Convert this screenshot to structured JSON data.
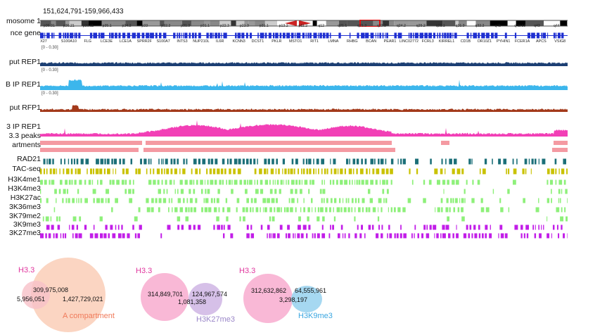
{
  "locus": "151,624,791-159,966,433",
  "colors": {
    "navy": "#1c3f73",
    "sky": "#3cb6ec",
    "rust": "#a3391a",
    "pink": "#f23fb6",
    "pink_light": "#f49aa2",
    "teal": "#1b6f78",
    "olive": "#c9c200",
    "lime": "#8ef07a",
    "purple": "#c21de8",
    "gene_blue": "#1f2fd1"
  },
  "tracks": [
    {
      "label": "mosome 1",
      "name": "chromosome-track"
    },
    {
      "label": "nce gene",
      "name": "reference-gene-track"
    },
    {
      "label": "put REP1",
      "name": "input-rep1-track",
      "scale": "[0 - 0.30]"
    },
    {
      "label": "B IP REP1",
      "name": "b-ip-rep1-track",
      "scale": "[0 - 0.30]"
    },
    {
      "label": "put RFP1",
      "name": "input-rfp1-track",
      "scale": "[0 - 0.30]"
    },
    {
      "label": "3 IP REP1",
      "name": "h33-ip-rep1-track"
    },
    {
      "label": "3.3 peaks",
      "name": "h33-peaks-track"
    },
    {
      "label": "artments",
      "name": "compartments-track"
    },
    {
      "label": "RAD21",
      "name": "rad21-track"
    },
    {
      "label": "TAC-seq",
      "name": "atac-seq-track"
    },
    {
      "label": "H3K4me1",
      "name": "h3k4me1-track"
    },
    {
      "label": "H3K4me3",
      "name": "h3k4me3-track"
    },
    {
      "label": "H3K27ac",
      "name": "h3k27ac-track"
    },
    {
      "label": "3K36me3",
      "name": "h3k36me3-track"
    },
    {
      "label": "3K79me2",
      "name": "h3k79me2-track"
    },
    {
      "label": "3K9me3",
      "name": "h3k9me3-track"
    },
    {
      "label": "3K27me3",
      "name": "h3k27me3-track"
    }
  ],
  "cyto_bands": [
    "p36.31",
    "p36.21",
    "p36.11",
    "p35.1",
    "p34.2",
    "p33",
    "p32.2",
    "p31.3",
    "p31.1",
    "p22.3",
    "p21.3",
    "p21.1",
    "p13.2",
    "p11.2",
    "q12",
    "q21.1",
    "q21.3",
    "q23.2",
    "q24.2",
    "q25.2",
    "q31.1",
    "q31.3",
    "q32.2",
    "q41",
    "q42.13",
    "q43",
    "q44"
  ],
  "genes": [
    "X27",
    "S100A10",
    "FLG",
    "LCE3E",
    "LCE1A",
    "SPRR2F",
    "S100A7",
    "INTS3",
    "NUP210L",
    "IL6R",
    "KCNN3",
    "DCST1",
    "PKLR",
    "MSTO1",
    "RIT1",
    "LMNA",
    "RHBG",
    "BCAN",
    "PEAR1",
    "LINC02772",
    "FCRL3",
    "KIRREL1",
    "CD1B",
    "OR10Z1",
    "PYHIN1",
    "FCER1A",
    "APCS",
    "VSIG8"
  ],
  "venns": [
    {
      "a_label": "H3.3",
      "b_label": "A compartment",
      "a_only": "5,956,051",
      "overlap": "309,975,008",
      "b_only": "1,427,729,021"
    },
    {
      "a_label": "H3.3",
      "b_label": "H3K27me3",
      "a_only": "314,849,701",
      "overlap": "1,081,358",
      "b_only": "124,967,574"
    },
    {
      "a_label": "H3.3",
      "b_label": "H3K9me3",
      "a_only": "312,632,862",
      "overlap": "3,298,197",
      "b_only": "64,555,961"
    }
  ]
}
